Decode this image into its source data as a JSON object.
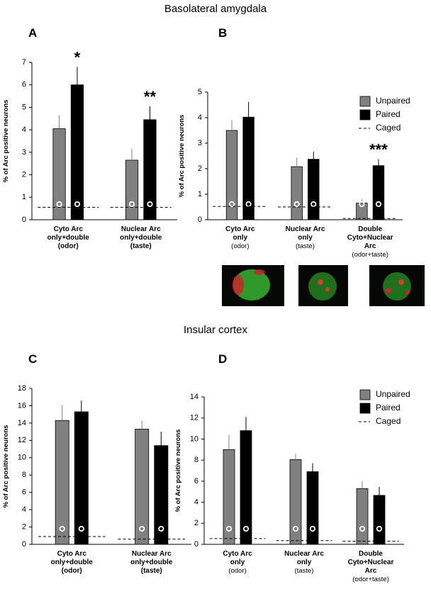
{
  "sections": [
    "Basolateral amygdala",
    "Insular cortex"
  ],
  "chart_data": [
    {
      "type": "bar",
      "panel": "A",
      "ylabel": "% of Arc positive neurons",
      "categories": [
        [
          "Cyto Arc",
          "only+double",
          "(odor)"
        ],
        [
          "Nuclear Arc",
          "only+double",
          "(taste)"
        ]
      ],
      "ylim": [
        0,
        7
      ],
      "yticks": [
        0,
        1,
        2,
        3,
        4,
        5,
        6,
        7
      ],
      "series": [
        {
          "color": "#808080",
          "values": [
            4.05,
            2.65
          ],
          "errors": [
            0.6,
            0.5
          ]
        },
        {
          "color": "#000000",
          "values": [
            6.0,
            4.45
          ],
          "errors": [
            0.8,
            0.6
          ]
        },
        {
          "color": "#000000",
          "style": "dashed",
          "values": [
            0.55,
            0.55
          ]
        }
      ],
      "annotations": [
        {
          "text": "*",
          "series": 1,
          "category": 0
        },
        {
          "text": "**",
          "series": 1,
          "category": 1
        }
      ]
    },
    {
      "type": "bar",
      "panel": "B",
      "ylabel": "% of Arc positive neurons",
      "categories": [
        [
          "Cyto Arc",
          "only",
          "(odor)"
        ],
        [
          "Nuclear Arc",
          "only",
          "(taste)"
        ],
        [
          "Double",
          "Cyto+Nuclear",
          "Arc",
          "(odor+taste)"
        ]
      ],
      "ylim": [
        0,
        5
      ],
      "yticks": [
        0,
        1,
        2,
        3,
        4,
        5
      ],
      "series": [
        {
          "name": "Unpaired",
          "color": "#808080",
          "values": [
            3.5,
            2.08,
            0.65
          ],
          "errors": [
            0.4,
            0.35,
            0.15
          ]
        },
        {
          "name": "Paired",
          "color": "#000000",
          "values": [
            4.02,
            2.37,
            2.12
          ],
          "errors": [
            0.6,
            0.3,
            0.25
          ]
        },
        {
          "name": "Caged",
          "color": "#000000",
          "style": "dashed",
          "values": [
            0.52,
            0.5,
            0.05
          ]
        }
      ],
      "annotations": [
        {
          "text": "***",
          "series": 1,
          "category": 2
        }
      ]
    },
    {
      "type": "bar",
      "panel": "C",
      "ylabel": "% of Arc positive neurons",
      "categories": [
        [
          "Cyto Arc",
          "only+double",
          "(odor)"
        ],
        [
          "Nuclear Arc",
          "only+double",
          "(taste)"
        ]
      ],
      "ylim": [
        0,
        18
      ],
      "yticks": [
        0,
        2,
        4,
        6,
        8,
        10,
        12,
        14,
        16,
        18
      ],
      "series": [
        {
          "color": "#808080",
          "values": [
            14.3,
            13.3
          ],
          "errors": [
            1.8,
            1.0
          ]
        },
        {
          "color": "#000000",
          "values": [
            15.3,
            11.4
          ],
          "errors": [
            1.3,
            1.6
          ]
        },
        {
          "color": "#000000",
          "style": "dashed",
          "values": [
            0.9,
            0.6
          ]
        }
      ]
    },
    {
      "type": "bar",
      "panel": "D",
      "ylabel": "% of Arc positive neurons",
      "categories": [
        [
          "Cyto Arc",
          "only",
          "(odor)"
        ],
        [
          "Nuclear Arc",
          "only",
          "(taste)"
        ],
        [
          "Double",
          "Cyto+Nuclear",
          "Arc",
          "(odor+taste)"
        ]
      ],
      "ylim": [
        0,
        14
      ],
      "yticks": [
        0,
        2,
        4,
        6,
        8,
        10,
        12,
        14
      ],
      "series": [
        {
          "name": "Unpaired",
          "color": "#808080",
          "values": [
            9.0,
            8.05,
            5.3
          ],
          "errors": [
            1.4,
            0.55,
            0.7
          ]
        },
        {
          "name": "Paired",
          "color": "#000000",
          "values": [
            10.8,
            6.9,
            4.65
          ],
          "errors": [
            1.3,
            0.8,
            0.8
          ]
        },
        {
          "name": "Caged",
          "color": "#000000",
          "style": "dashed",
          "values": [
            0.55,
            0.35,
            0.3
          ]
        }
      ]
    }
  ]
}
